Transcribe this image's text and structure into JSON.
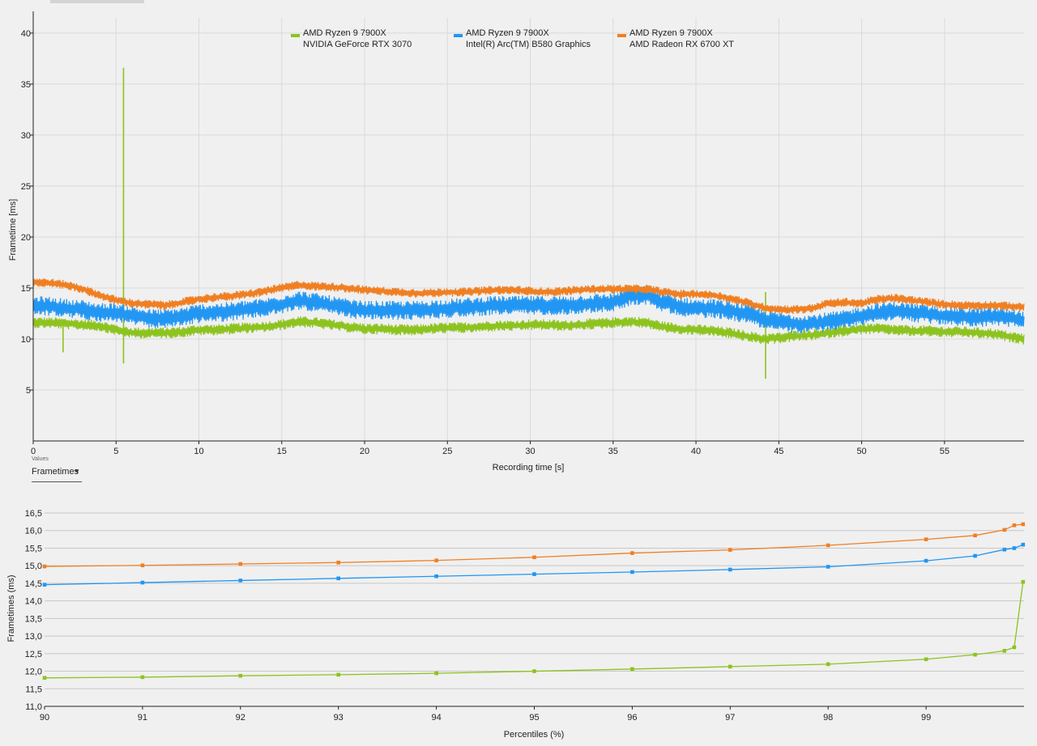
{
  "controls": {
    "values_caption": "Values",
    "values_selected": "Frametimes",
    "chevron_icon": "chevron-down-icon"
  },
  "colors": {
    "rtx3070": "#8dc31f",
    "arc_b580": "#2196f3",
    "rx6700xt": "#f07f22",
    "grid": "#dadada",
    "grid_bottom": "#c7c7c7",
    "axis": "#222222"
  },
  "chart_data": [
    {
      "type": "line",
      "xlabel": "Recording time [s]",
      "ylabel": "Frametime [ms]",
      "xlim": [
        0,
        59.8
      ],
      "ylim": [
        0,
        41.5
      ],
      "xticks": [
        "0",
        "5",
        "10",
        "15",
        "20",
        "25",
        "30",
        "35",
        "40",
        "45",
        "50",
        "55"
      ],
      "yticks": [
        "5",
        "10",
        "15",
        "20",
        "25",
        "30",
        "35",
        "40"
      ],
      "grid": true,
      "legend_position": "top-center",
      "x": [
        0,
        1,
        2,
        3,
        4,
        5,
        6,
        7,
        8,
        9,
        10,
        11,
        12,
        13,
        14,
        15,
        16,
        17,
        18,
        19,
        20,
        21,
        22,
        23,
        24,
        25,
        26,
        27,
        28,
        29,
        30,
        31,
        32,
        33,
        34,
        35,
        36,
        37,
        38,
        39,
        40,
        41,
        42,
        43,
        44,
        45,
        46,
        47,
        48,
        49,
        50,
        51,
        52,
        53,
        54,
        55,
        56,
        57,
        58,
        59,
        59.8
      ],
      "series": [
        {
          "name": "AMD Ryzen 9 7900X NVIDIA GeForce RTX 3070",
          "cpu": "AMD Ryzen 9 7900X",
          "gpu": "NVIDIA GeForce RTX 3070",
          "color_key": "rtx3070",
          "values": [
            11.6,
            11.6,
            11.5,
            11.4,
            11.3,
            10.9,
            10.6,
            10.6,
            10.6,
            10.7,
            10.9,
            10.9,
            11.0,
            11.1,
            11.2,
            11.4,
            11.7,
            11.6,
            11.4,
            11.2,
            11.0,
            11.0,
            10.9,
            10.9,
            11.0,
            11.1,
            11.1,
            11.2,
            11.3,
            11.3,
            11.4,
            11.4,
            11.3,
            11.4,
            11.5,
            11.6,
            11.7,
            11.6,
            11.2,
            11.0,
            10.9,
            10.8,
            10.6,
            10.3,
            10.0,
            10.1,
            10.3,
            10.4,
            10.6,
            10.8,
            11.0,
            11.0,
            10.9,
            10.8,
            10.8,
            10.7,
            10.7,
            10.6,
            10.5,
            10.2,
            10.0
          ],
          "spikes": [
            {
              "x": 1.8,
              "high": 11.9,
              "low": 8.7
            },
            {
              "x": 5.45,
              "high": 36.6,
              "low": 7.6
            },
            {
              "x": 44.2,
              "high": 14.6,
              "low": 6.1
            }
          ]
        },
        {
          "name": "AMD Ryzen 9 7900X Intel(R) Arc(TM) B580 Graphics",
          "cpu": "AMD Ryzen 9 7900X",
          "gpu": "Intel(R) Arc(TM) B580 Graphics",
          "color_key": "arc_b580",
          "values": [
            13.3,
            13.2,
            13.0,
            12.9,
            12.6,
            12.6,
            12.3,
            12.0,
            12.0,
            12.2,
            12.5,
            12.6,
            12.7,
            12.9,
            13.1,
            13.4,
            13.8,
            13.6,
            13.3,
            13.0,
            12.8,
            12.8,
            12.8,
            12.8,
            12.9,
            13.0,
            13.1,
            13.2,
            13.3,
            13.3,
            13.3,
            13.3,
            13.3,
            13.4,
            13.5,
            13.6,
            14.2,
            14.3,
            13.6,
            13.2,
            13.0,
            13.0,
            12.8,
            12.5,
            12.0,
            11.7,
            11.5,
            11.5,
            11.7,
            11.9,
            12.3,
            12.6,
            12.8,
            12.6,
            12.4,
            12.3,
            12.2,
            12.1,
            12.2,
            12.1,
            11.8
          ]
        },
        {
          "name": "AMD Ryzen 9 7900X AMD Radeon RX 6700 XT",
          "cpu": "AMD Ryzen 9 7900X",
          "gpu": "AMD Radeon RX 6700 XT",
          "color_key": "rx6700xt",
          "values": [
            15.6,
            15.5,
            15.3,
            14.9,
            14.3,
            13.8,
            13.5,
            13.4,
            13.3,
            13.6,
            13.9,
            14.1,
            14.2,
            14.4,
            14.7,
            15.0,
            15.3,
            15.2,
            15.1,
            15.0,
            14.8,
            14.7,
            14.6,
            14.5,
            14.5,
            14.6,
            14.6,
            14.7,
            14.8,
            14.8,
            14.7,
            14.6,
            14.7,
            14.8,
            14.9,
            14.9,
            14.9,
            14.9,
            14.6,
            14.4,
            14.4,
            14.3,
            14.0,
            13.6,
            13.1,
            12.9,
            12.9,
            13.0,
            13.5,
            13.6,
            13.5,
            13.9,
            14.0,
            13.8,
            13.6,
            13.4,
            13.3,
            13.3,
            13.3,
            13.2,
            13.1
          ]
        }
      ]
    },
    {
      "type": "line",
      "xlabel": "Percentiles (%)",
      "ylabel": "Frametimes (ms)",
      "xlim": [
        90,
        100
      ],
      "ylim": [
        11.0,
        16.5
      ],
      "xticks": [
        "90",
        "91",
        "92",
        "93",
        "94",
        "95",
        "96",
        "97",
        "98",
        "99"
      ],
      "yticks": [
        "11,0",
        "11,5",
        "12,0",
        "12,5",
        "13,0",
        "13,5",
        "14,0",
        "14,5",
        "15,0",
        "15,5",
        "16,0",
        "16,5"
      ],
      "grid": true,
      "x": [
        90,
        91,
        92,
        93,
        94,
        95,
        96,
        97,
        98,
        99,
        99.5,
        99.8,
        99.9,
        99.99
      ],
      "series": [
        {
          "color_key": "rx6700xt",
          "values": [
            14.98,
            15.01,
            15.05,
            15.09,
            15.15,
            15.24,
            15.36,
            15.45,
            15.58,
            15.75,
            15.86,
            16.02,
            16.15,
            16.18
          ]
        },
        {
          "color_key": "arc_b580",
          "values": [
            14.46,
            14.52,
            14.58,
            14.64,
            14.7,
            14.76,
            14.82,
            14.89,
            14.97,
            15.14,
            15.28,
            15.46,
            15.5,
            15.6
          ]
        },
        {
          "color_key": "rtx3070",
          "values": [
            11.81,
            11.83,
            11.87,
            11.9,
            11.94,
            12.0,
            12.06,
            12.13,
            12.2,
            12.34,
            12.47,
            12.58,
            12.68,
            14.54
          ]
        }
      ]
    }
  ]
}
